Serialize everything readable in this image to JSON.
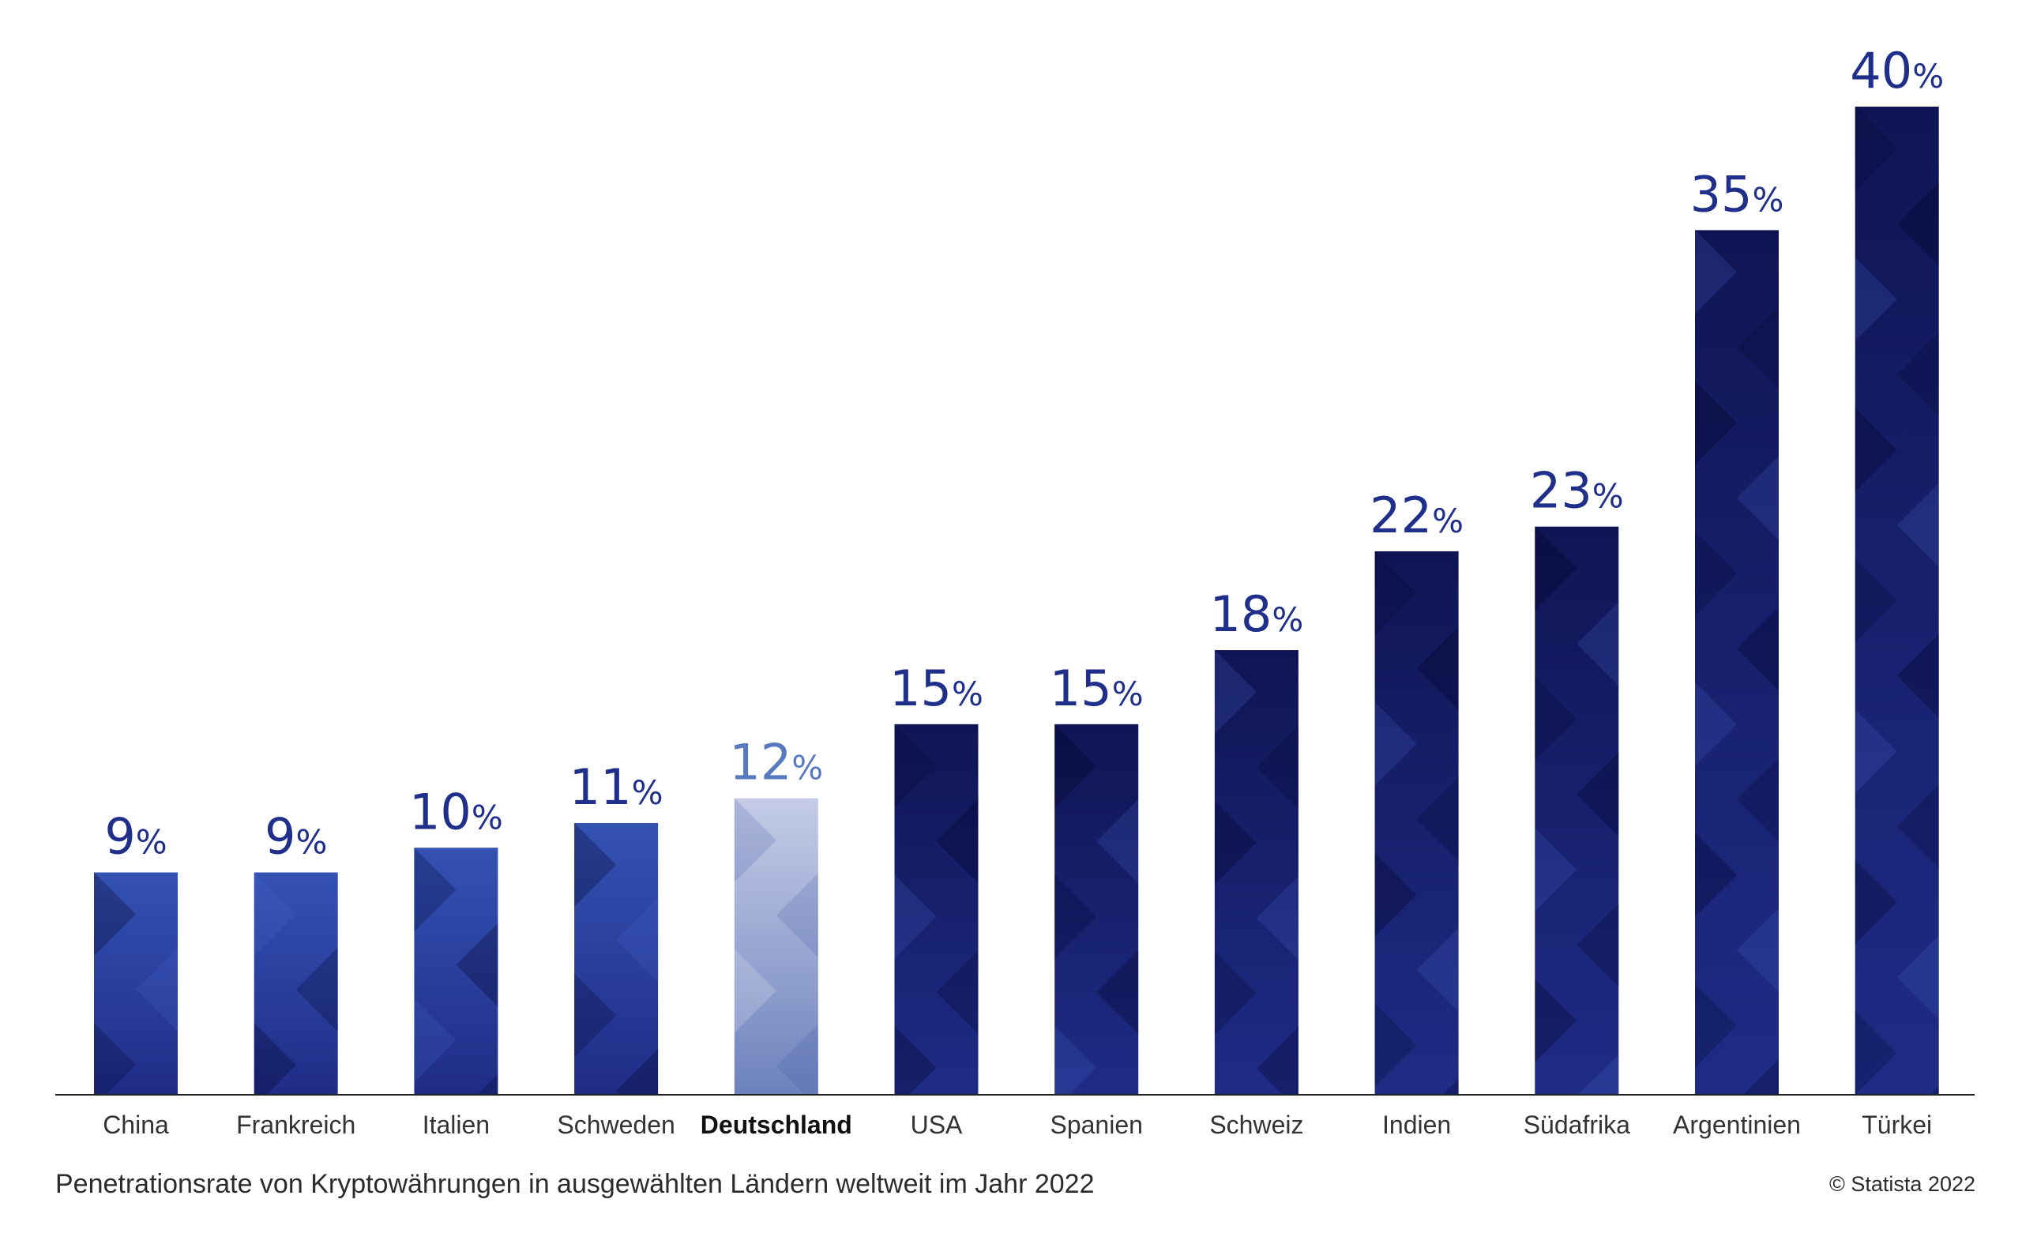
{
  "chart_data": {
    "type": "bar",
    "categories": [
      "China",
      "Frankreich",
      "Italien",
      "Schweden",
      "Deutschland",
      "USA",
      "Spanien",
      "Schweiz",
      "Indien",
      "Südafrika",
      "Argentinien",
      "Türkei"
    ],
    "values": [
      9,
      9,
      10,
      11,
      12,
      15,
      15,
      18,
      22,
      23,
      35,
      40
    ],
    "value_unit": "%",
    "highlighted_category": "Deutschland",
    "ylim": [
      0,
      40
    ],
    "grid": false,
    "colors": {
      "bar_dark": "#0f1554",
      "bar_mid": "#1f2c86",
      "bar_light": "#3452b3",
      "bar_highlight_top": "#c4cce6",
      "bar_highlight_bottom": "#6d82bd",
      "label_value": "#1f2f8a",
      "label_value_highlight": "#5a7ac0",
      "axis": "#222222"
    }
  },
  "caption": "Penetrationsrate von Kryptowährungen in ausgewählten Ländern weltweit im Jahr 2022",
  "copyright": "© Statista 2022"
}
